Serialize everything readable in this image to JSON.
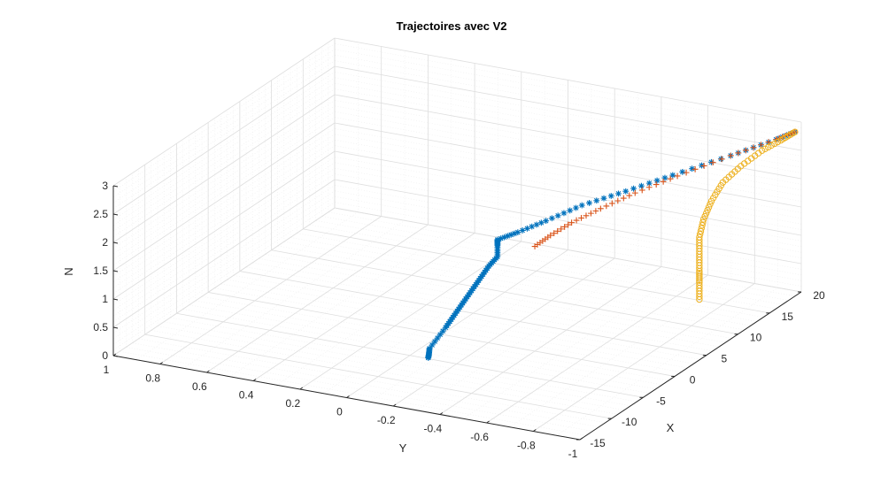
{
  "chart_data": {
    "type": "scatter3d",
    "title": "Trajectoires avec V2",
    "xlabel": "X",
    "ylabel": "Y",
    "zlabel": "N",
    "xlim": [
      -15,
      20
    ],
    "ylim": [
      -1,
      1
    ],
    "zlim": [
      0,
      3
    ],
    "xticks": [
      "-15",
      "-10",
      "-5",
      "0",
      "5",
      "10",
      "15",
      "20"
    ],
    "yticks": [
      "1",
      "0.8",
      "0.6",
      "0.4",
      "0.2",
      "0",
      "-0.2",
      "-0.4",
      "-0.6",
      "-0.8",
      "-1"
    ],
    "zticks": [
      "0",
      "0.5",
      "1",
      "1.5",
      "2",
      "2.5",
      "3"
    ],
    "grid": true,
    "minor_grid": true,
    "series": [
      {
        "marker": "asterisk",
        "color": "#0072BD",
        "x": [
          19,
          17.5,
          14,
          10,
          7,
          4.5,
          2.5,
          1,
          0,
          0,
          0,
          -1,
          -2,
          -3,
          -4,
          -5,
          -6,
          -7.8,
          -7.9,
          -8
        ],
        "y": [
          -1,
          -0.96,
          -0.86,
          -0.72,
          -0.6,
          -0.48,
          -0.38,
          -0.3,
          -0.24,
          -0.24,
          -0.24,
          -0.23,
          -0.22,
          -0.21,
          -0.2,
          -0.19,
          -0.18,
          -0.16,
          -0.16,
          -0.16
        ],
        "z": [
          2.9,
          2.85,
          2.75,
          2.6,
          2.45,
          2.3,
          2.1,
          1.95,
          1.85,
          1.75,
          1.55,
          1.45,
          1.3,
          1.15,
          1.0,
          0.85,
          0.7,
          0.45,
          0.35,
          0.3
        ]
      },
      {
        "marker": "plus",
        "color": "#D95319",
        "x": [
          19,
          17.5,
          14,
          10,
          7,
          4.5,
          2.5,
          1,
          0
        ],
        "y": [
          -1,
          -0.96,
          -0.86,
          -0.74,
          -0.64,
          -0.56,
          -0.49,
          -0.44,
          -0.4
        ],
        "z": [
          2.9,
          2.85,
          2.75,
          2.6,
          2.45,
          2.3,
          2.15,
          2.0,
          1.85
        ]
      },
      {
        "marker": "circle",
        "color": "#EDB120",
        "x": [
          19,
          17.5,
          16,
          14.5,
          13.5,
          12.8,
          12.3,
          12,
          12,
          12,
          12,
          12
        ],
        "y": [
          -1,
          -0.98,
          -0.94,
          -0.89,
          -0.84,
          -0.81,
          -0.79,
          -0.78,
          -0.78,
          -0.78,
          -0.78,
          -0.78
        ],
        "z": [
          2.9,
          2.85,
          2.75,
          2.55,
          2.3,
          2.0,
          1.7,
          1.4,
          1.1,
          0.8,
          0.6,
          0.3
        ]
      }
    ]
  }
}
